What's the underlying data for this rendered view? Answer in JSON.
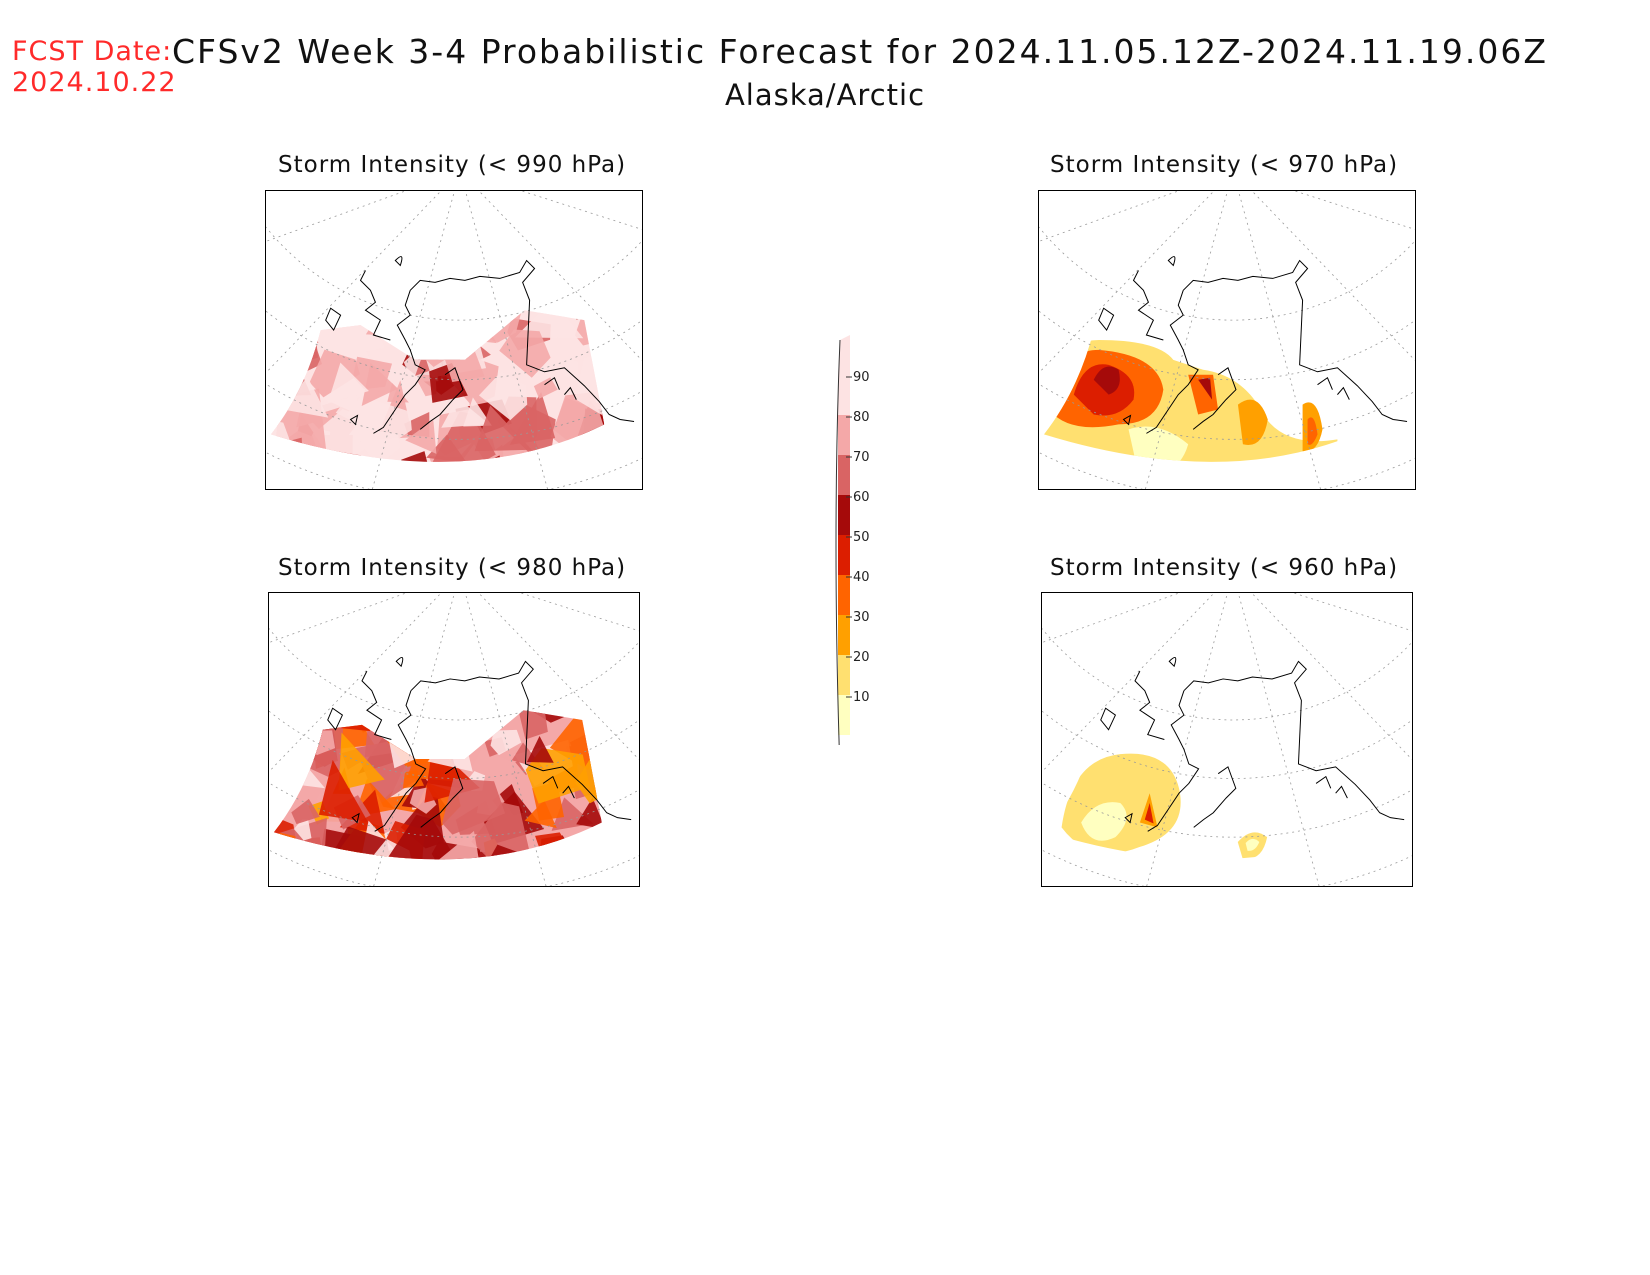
{
  "header": {
    "fcst_label": "FCST Date:",
    "fcst_date": "2024.10.22",
    "title": "CFSv2 Week 3-4 Probabilistic Forecast for 2024.11.05.12Z-2024.11.19.06Z",
    "region": "Alaska/Arctic"
  },
  "panels": [
    {
      "title": "Storm Intensity (< 990 hPa)",
      "threshold_hpa": 990,
      "level": "high"
    },
    {
      "title": "Storm Intensity (< 970 hPa)",
      "threshold_hpa": 970,
      "level": "mid"
    },
    {
      "title": "Storm Intensity (< 980 hPa)",
      "threshold_hpa": 980,
      "level": "midhigh"
    },
    {
      "title": "Storm Intensity (< 960 hPa)",
      "threshold_hpa": 960,
      "level": "low"
    }
  ],
  "legend": {
    "labels": [
      "90",
      "80",
      "70",
      "60",
      "50",
      "40",
      "30",
      "20",
      "10"
    ],
    "colors": [
      "#fde3e3",
      "#f4a8a8",
      "#d96464",
      "#a50a0a",
      "#dc1e00",
      "#ff6400",
      "#ffa000",
      "#ffe070",
      "#ffffc0"
    ]
  }
}
